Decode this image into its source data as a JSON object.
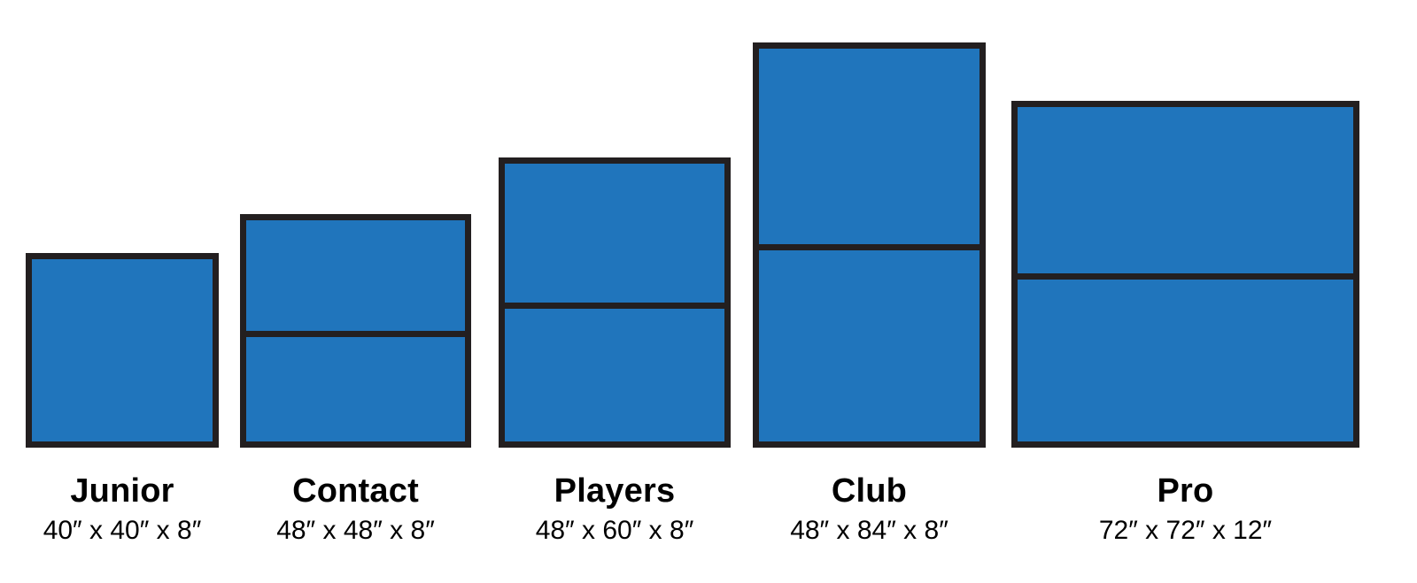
{
  "products": [
    {
      "name": "Junior",
      "dimensions": "40″ x 40″ x 8″",
      "sections": 1
    },
    {
      "name": "Contact",
      "dimensions": "48″ x 48″ x 8″",
      "sections": 2
    },
    {
      "name": "Players",
      "dimensions": "48″ x 60″ x 8″",
      "sections": 2
    },
    {
      "name": "Club",
      "dimensions": "48″ x 84″ x 8″",
      "sections": 2
    },
    {
      "name": "Pro",
      "dimensions": "72″ x 72″ x 12″",
      "sections": 2
    }
  ],
  "colors": {
    "mat_fill": "#2075bc",
    "mat_outline": "#231f20",
    "text": "#000000"
  }
}
